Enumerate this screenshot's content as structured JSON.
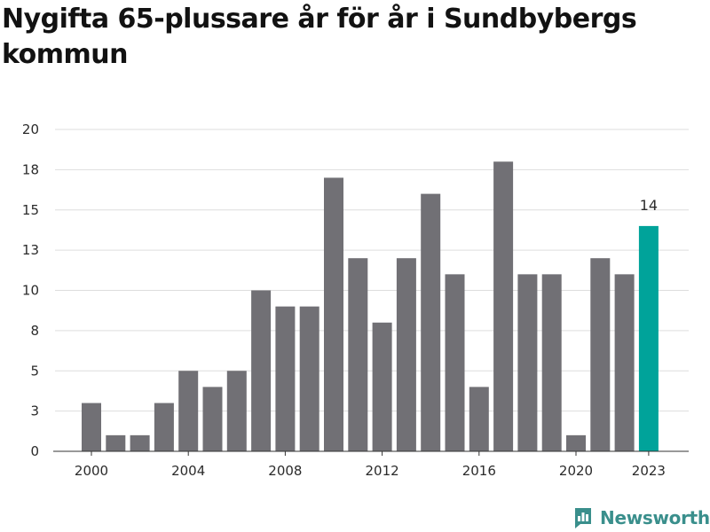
{
  "chart_data": {
    "type": "bar",
    "title": "Nygifta 65-plussare år för år i Sundbybergs kommun",
    "xlabel": "",
    "ylabel": "",
    "categories": [
      "2000",
      "2001",
      "2002",
      "2003",
      "2004",
      "2005",
      "2006",
      "2007",
      "2008",
      "2009",
      "2010",
      "2011",
      "2012",
      "2013",
      "2014",
      "2015",
      "2016",
      "2017",
      "2018",
      "2019",
      "2020",
      "2021",
      "2022",
      "2023"
    ],
    "values": [
      3,
      1,
      1,
      3,
      5,
      4,
      5,
      10,
      9,
      9,
      17,
      12,
      8,
      12,
      16,
      11,
      4,
      18,
      11,
      11,
      1,
      12,
      11,
      14
    ],
    "x_tick_labels": [
      "2000",
      "2004",
      "2008",
      "2012",
      "2016",
      "2020",
      "2023"
    ],
    "y_tick_labels": [
      "0",
      "3",
      "5",
      "8",
      "10",
      "13",
      "15",
      "18",
      "20"
    ],
    "ylim": [
      0,
      20
    ],
    "highlight": {
      "category": "2023",
      "value_label": "14"
    },
    "colors": {
      "bar": "#717075",
      "highlight": "#00a39a",
      "grid": "#dddddd",
      "axis": "#333333"
    }
  },
  "brand": {
    "name": "Newsworthy",
    "icon": "newsworthy-logo-icon",
    "color": "#3a8f8c"
  }
}
